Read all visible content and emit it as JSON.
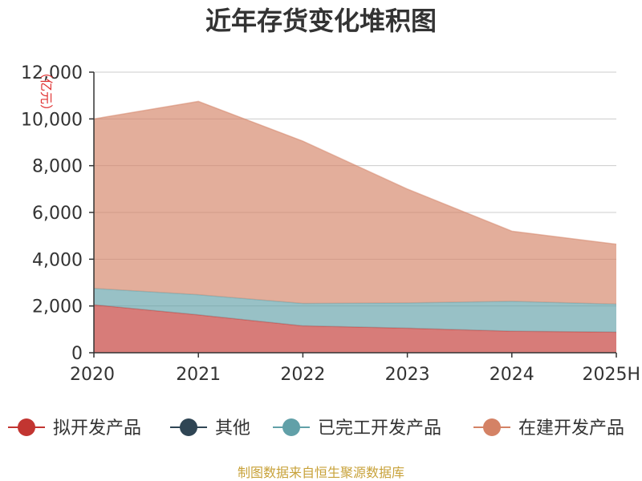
{
  "chart_data": {
    "type": "area",
    "title": "近年存货变化堆积图",
    "unit_label": "亿元",
    "categories": [
      "2020",
      "2021",
      "2022",
      "2023",
      "2024",
      "2025H"
    ],
    "y_ticks": [
      "0",
      "2,000",
      "4,000",
      "6,000",
      "8,000",
      "10,000",
      "12,000"
    ],
    "ylim": [
      0,
      12000
    ],
    "stacked": true,
    "grid": true,
    "legend_position": "bottom",
    "series": [
      {
        "name": "拟开发产品",
        "color": "#c23531",
        "values": [
          2050,
          1620,
          1150,
          1050,
          920,
          880
        ]
      },
      {
        "name": "其他",
        "color": "#2f4554",
        "values": [
          0,
          0,
          0,
          0,
          0,
          0
        ]
      },
      {
        "name": "已完工开发产品",
        "color": "#61a0a8",
        "values": [
          700,
          860,
          960,
          1080,
          1280,
          1200
        ]
      },
      {
        "name": "在建开发产品",
        "color": "#d48265",
        "values": [
          7250,
          8270,
          6940,
          4870,
          3000,
          2560
        ]
      }
    ],
    "source": "制图数据来自恒生聚源数据库"
  }
}
